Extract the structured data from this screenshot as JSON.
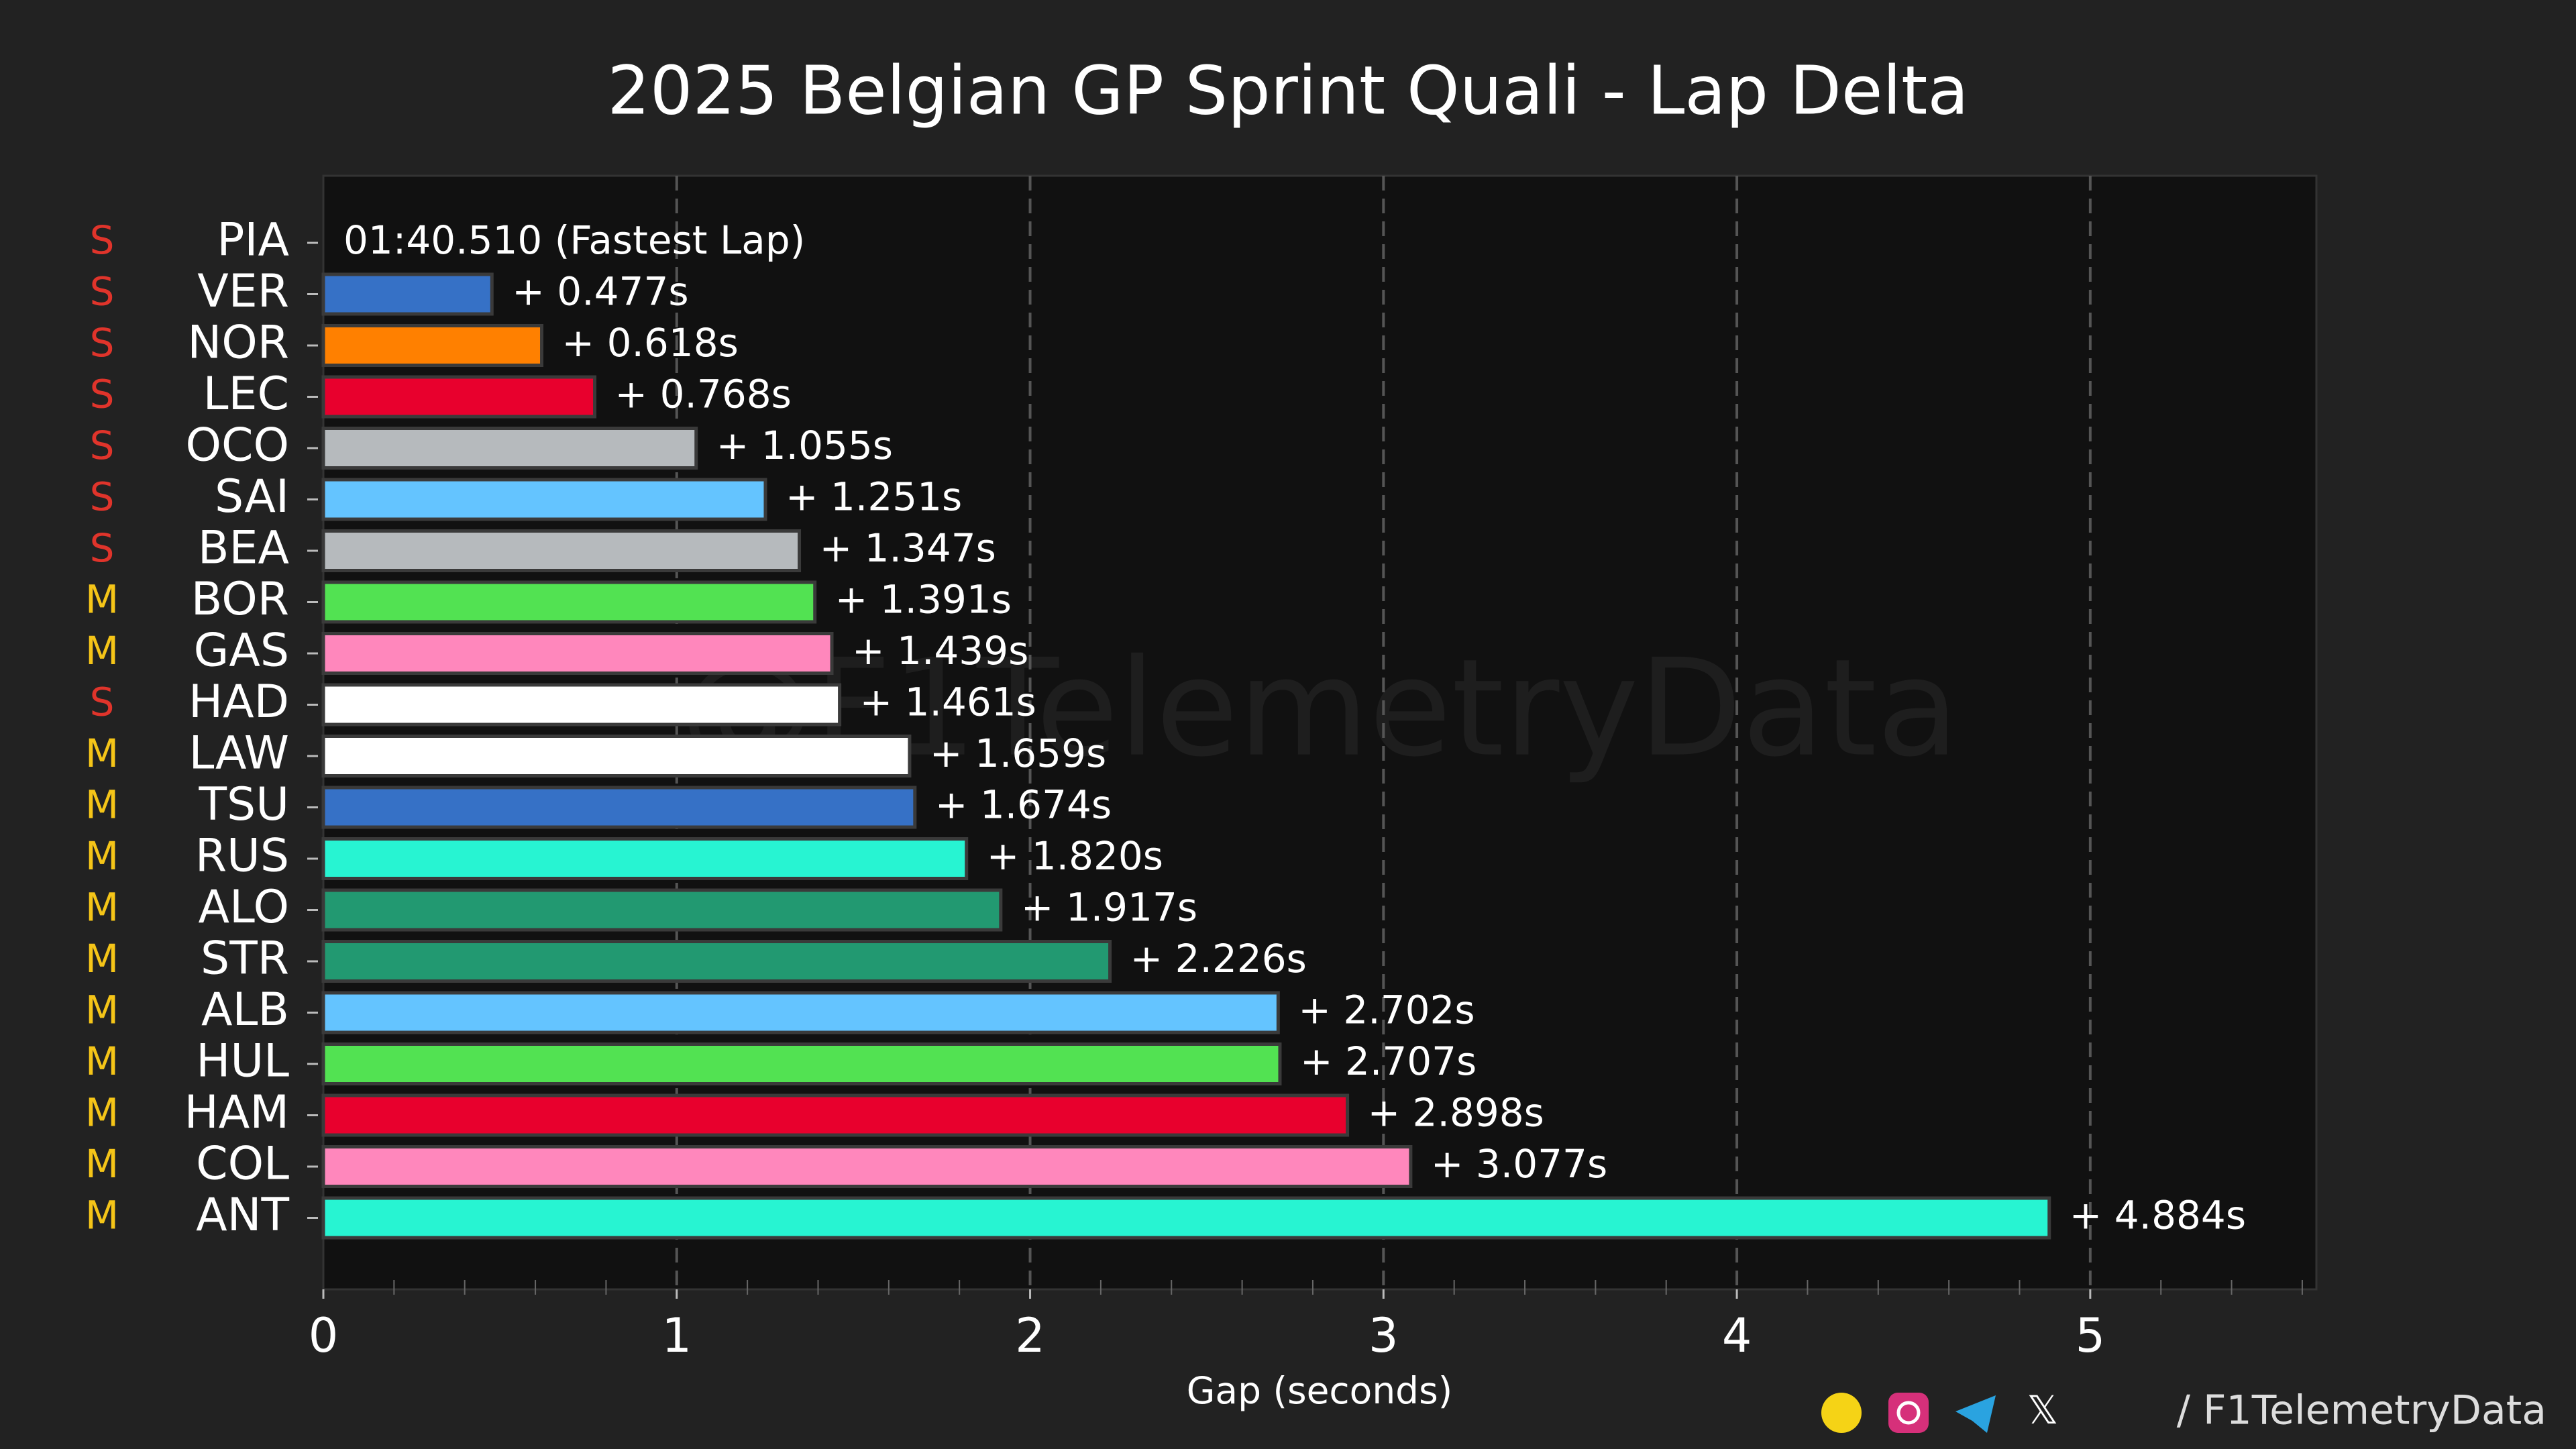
{
  "chart_data": {
    "type": "bar",
    "orientation": "horizontal",
    "title": "2025 Belgian GP Sprint Quali - Lap Delta",
    "x_label": "Gap (seconds)",
    "watermark": "@F1TelemetryData",
    "footer": "/ F1TelemetryData",
    "fastest_lap_label": "01:40.510 (Fastest Lap)",
    "categories": [
      "PIA",
      "VER",
      "NOR",
      "LEC",
      "OCO",
      "SAI",
      "BEA",
      "BOR",
      "GAS",
      "HAD",
      "LAW",
      "TSU",
      "RUS",
      "ALO",
      "STR",
      "ALB",
      "HUL",
      "HAM",
      "COL",
      "ANT"
    ],
    "tyres": [
      "S",
      "S",
      "S",
      "S",
      "S",
      "S",
      "S",
      "M",
      "M",
      "S",
      "M",
      "M",
      "M",
      "M",
      "M",
      "M",
      "M",
      "M",
      "M",
      "M"
    ],
    "tyre_colors": {
      "S": "#e0342b",
      "M": "#f5c518"
    },
    "values": [
      0,
      0.477,
      0.618,
      0.768,
      1.055,
      1.251,
      1.347,
      1.391,
      1.439,
      1.461,
      1.659,
      1.674,
      1.82,
      1.917,
      2.226,
      2.702,
      2.707,
      2.898,
      3.077,
      4.884
    ],
    "value_labels": [
      null,
      "+ 0.477s",
      "+ 0.618s",
      "+ 0.768s",
      "+ 1.055s",
      "+ 1.251s",
      "+ 1.347s",
      "+ 1.391s",
      "+ 1.439s",
      "+ 1.461s",
      "+ 1.659s",
      "+ 1.674s",
      "+ 1.820s",
      "+ 1.917s",
      "+ 2.226s",
      "+ 2.702s",
      "+ 2.707s",
      "+ 2.898s",
      "+ 3.077s",
      "+ 4.884s"
    ],
    "colors": [
      "#ff8000",
      "#3671c6",
      "#ff8000",
      "#e8002d",
      "#b6babd",
      "#64c4ff",
      "#b6babd",
      "#52e252",
      "#ff87bc",
      "#ffffff",
      "#ffffff",
      "#3671c6",
      "#27f4d2",
      "#229971",
      "#229971",
      "#64c4ff",
      "#52e252",
      "#e8002d",
      "#ff87bc",
      "#27f4d2"
    ],
    "xlim": [
      0,
      5.64
    ],
    "xticks": [
      0,
      1,
      2,
      3,
      4,
      5
    ],
    "minor_xticks": [
      0.2,
      0.4,
      0.6,
      0.8,
      1.2,
      1.4,
      1.6,
      1.8,
      2.2,
      2.4,
      2.6,
      2.8,
      3.2,
      3.4,
      3.6,
      3.8,
      4.2,
      4.4,
      4.6,
      4.8,
      5.2,
      5.4,
      5.6
    ],
    "grid": true
  }
}
